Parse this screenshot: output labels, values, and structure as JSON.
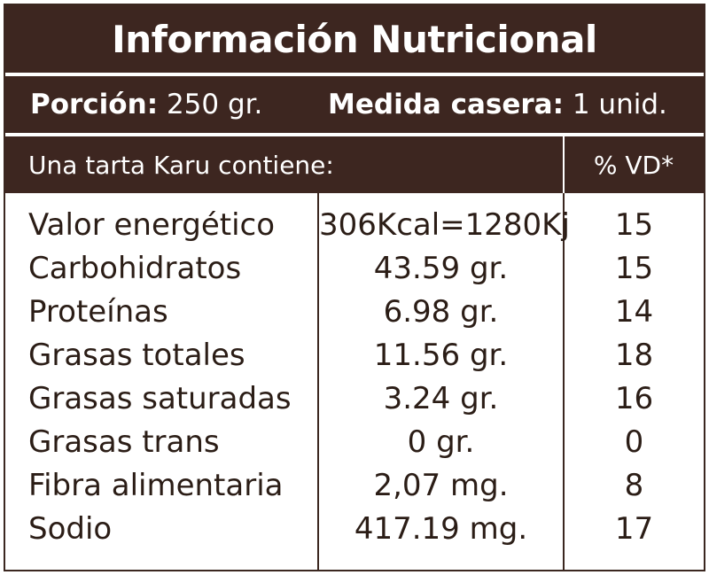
{
  "title": "Información Nutricional",
  "porcion": {
    "label": "Porción",
    "value": "250 gr."
  },
  "medida": {
    "label": "Medida casera",
    "value": "1 unid."
  },
  "header": {
    "left": "Una tarta Karu contiene:",
    "right": "% VD*"
  },
  "rows": [
    {
      "name": "Valor energético",
      "amount": "306Kcal=1280Kj",
      "vd": "15"
    },
    {
      "name": "Carbohidratos",
      "amount": "43.59 gr.",
      "vd": "15"
    },
    {
      "name": "Proteínas",
      "amount": "6.98 gr.",
      "vd": "14"
    },
    {
      "name": "Grasas totales",
      "amount": "11.56 gr.",
      "vd": "18"
    },
    {
      "name": "Grasas saturadas",
      "amount": "3.24 gr.",
      "vd": "16"
    },
    {
      "name": "Grasas trans",
      "amount": "0 gr.",
      "vd": "0"
    },
    {
      "name": "Fibra alimentaria",
      "amount": "2,07 mg.",
      "vd": "8"
    },
    {
      "name": "Sodio",
      "amount": "417.19 mg.",
      "vd": "17"
    }
  ],
  "colors": {
    "band": "#3d2620",
    "text": "#2b1d16",
    "background": "#ffffff"
  }
}
